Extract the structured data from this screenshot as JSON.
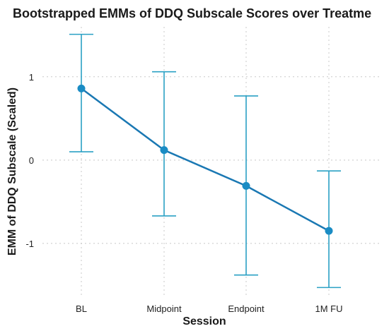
{
  "chart_data": {
    "type": "line",
    "title": "Bootstrapped EMMs of DDQ Subscale Scores over Treatme",
    "xlabel": "Session",
    "ylabel": "EMM of DDQ Subscale (Scaled)",
    "categories": [
      "BL",
      "Midpoint",
      "Endpoint",
      "1M FU"
    ],
    "series": [
      {
        "values": [
          0.86,
          0.12,
          -0.31,
          -0.85
        ],
        "lower": [
          0.1,
          -0.67,
          -1.38,
          -1.53
        ],
        "upper": [
          1.51,
          1.06,
          0.77,
          -0.13
        ]
      }
    ],
    "yticks": [
      -1,
      0,
      1
    ],
    "ytick_labels": [
      "-1",
      "0",
      "1"
    ],
    "ylim": [
      -1.62,
      1.6
    ],
    "grid": true,
    "colors": {
      "line": "#1a78b3",
      "point": "#1a8cc4",
      "errorbar": "#2aa0c4",
      "grid": "#c8c8c8"
    }
  }
}
